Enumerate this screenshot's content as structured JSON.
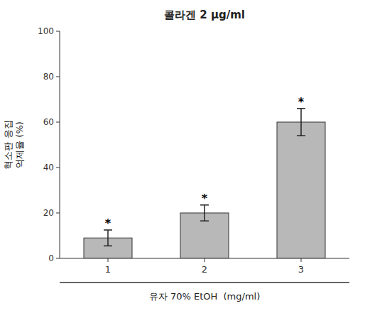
{
  "chart_data": {
    "type": "bar",
    "title": "콜라겐 2 μg/ml",
    "categories": [
      "1",
      "2",
      "3"
    ],
    "values": [
      9.0,
      20.0,
      60.0
    ],
    "errors": [
      3.5,
      3.5,
      6.0
    ],
    "color": "#b8b8b8",
    "x_label": "유자 70% EtOH  (mg/ml)",
    "y_label": "혁소판 응집\n억제율 (%)",
    "ylim": [
      0,
      100
    ],
    "yticks": [
      0,
      20,
      40,
      60,
      80,
      100
    ],
    "grid": false,
    "annotations": [
      {
        "text": "*",
        "category": "1"
      },
      {
        "text": "*",
        "category": "2"
      },
      {
        "text": "*",
        "category": "3"
      }
    ]
  }
}
